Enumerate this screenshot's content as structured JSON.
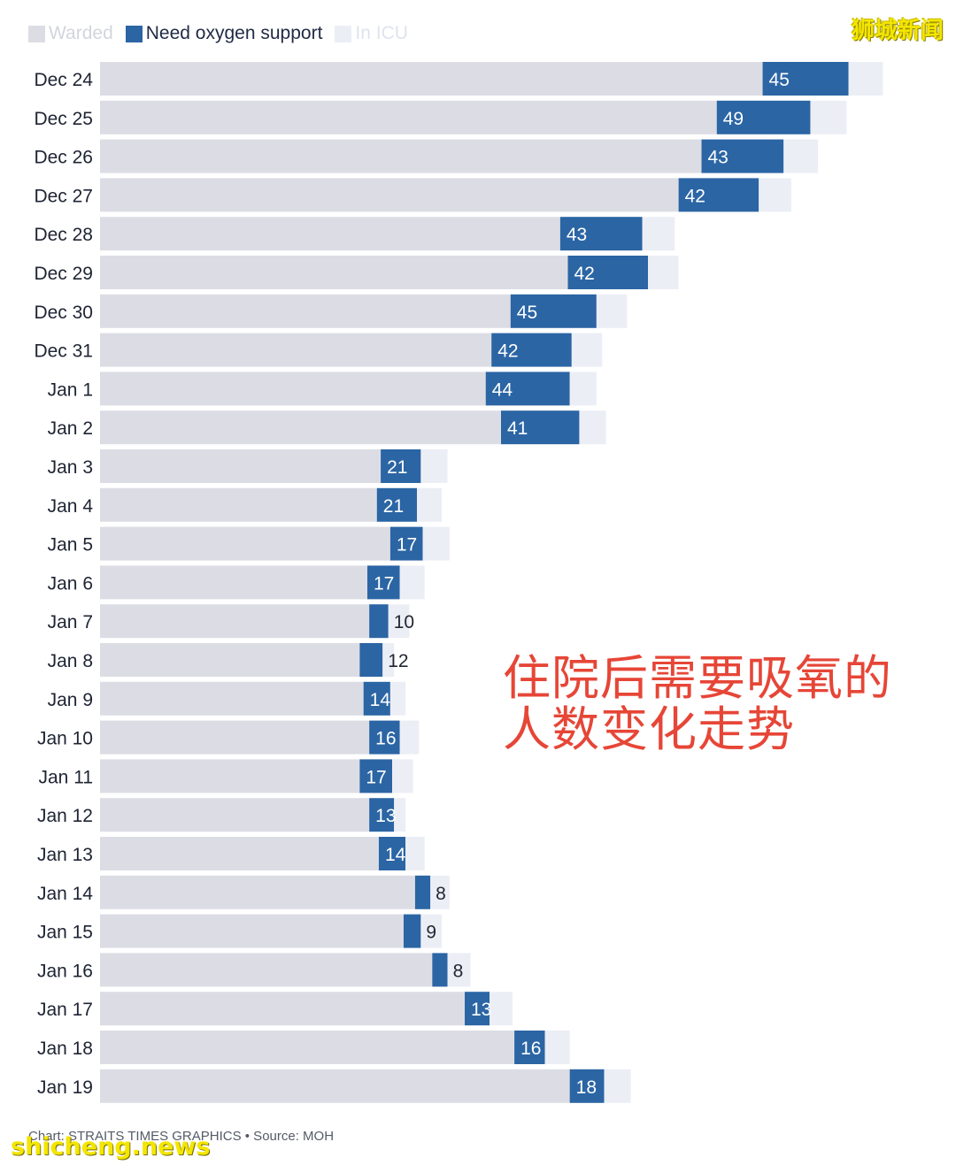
{
  "legend": {
    "warded": "Warded",
    "oxygen": "Need oxygen support",
    "icu": "In ICU"
  },
  "watermark_cn": "狮城新闻",
  "annotation": "住院后需要吸氧的人数变化走势",
  "source": "Chart: STRAITS TIMES GRAPHICS • Source: MOH",
  "site_watermark": "shicheng.news",
  "colors": {
    "warded": "#dcdde4",
    "oxygen": "#2b65a4",
    "icu": "#eceef6",
    "annotation": "#e64637"
  },
  "chart_data": {
    "type": "bar",
    "orientation": "horizontal",
    "stacked": true,
    "categories": [
      "Dec 24",
      "Dec 25",
      "Dec 26",
      "Dec 27",
      "Dec 28",
      "Dec 29",
      "Dec 30",
      "Dec 31",
      "Jan 1",
      "Jan 2",
      "Jan 3",
      "Jan 4",
      "Jan 5",
      "Jan 6",
      "Jan 7",
      "Jan 8",
      "Jan 9",
      "Jan 10",
      "Jan 11",
      "Jan 12",
      "Jan 13",
      "Jan 14",
      "Jan 15",
      "Jan 16",
      "Jan 17",
      "Jan 18",
      "Jan 19"
    ],
    "series": [
      {
        "name": "Warded",
        "values": [
          347,
          323,
          315,
          303,
          241,
          245,
          215,
          205,
          202,
          210,
          147,
          145,
          152,
          140,
          141,
          136,
          138,
          141,
          136,
          141,
          146,
          165,
          159,
          174,
          191,
          217,
          246
        ]
      },
      {
        "name": "Need oxygen support",
        "values": [
          45,
          49,
          43,
          42,
          43,
          42,
          45,
          42,
          44,
          41,
          21,
          21,
          17,
          17,
          10,
          12,
          14,
          16,
          17,
          13,
          14,
          8,
          9,
          8,
          13,
          16,
          18
        ]
      },
      {
        "name": "In ICU",
        "values": [
          18,
          19,
          18,
          17,
          17,
          16,
          16,
          16,
          14,
          14,
          14,
          13,
          14,
          13,
          11,
          6,
          8,
          10,
          11,
          6,
          10,
          10,
          11,
          12,
          12,
          13,
          14
        ]
      }
    ],
    "xlim": [
      0,
      420
    ],
    "grid": false,
    "legend_position": "top-left"
  }
}
